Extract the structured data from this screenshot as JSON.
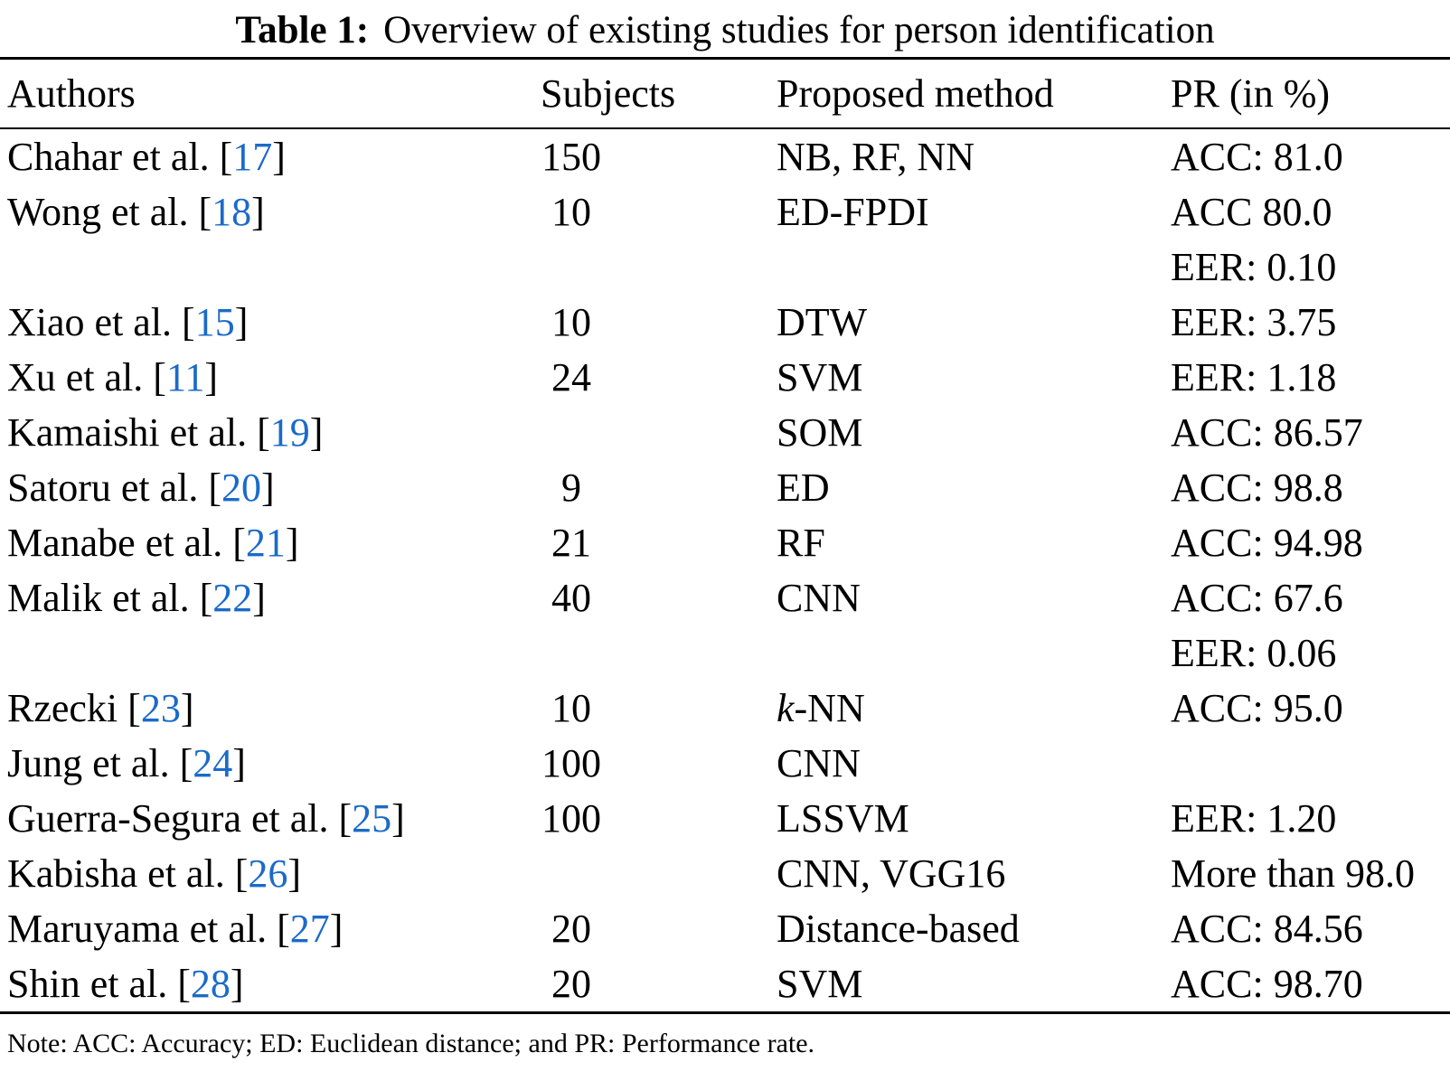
{
  "title": {
    "label": "Table 1:",
    "text": "Overview of existing studies for person identification"
  },
  "brackets": {
    "open": "[",
    "close": "]"
  },
  "columns": {
    "authors": "Authors",
    "subjects": "Subjects",
    "method": "Proposed method",
    "pr": "PR (in %)"
  },
  "colors": {
    "citation_blue": "#1b6ac9",
    "text": "#000000",
    "rule": "#000000",
    "background": "#ffffff"
  },
  "rows": [
    {
      "author": "Chahar et al. ",
      "cite": "17",
      "subjects": "150",
      "method": "NB, RF, NN",
      "pr": [
        "ACC: 81.0"
      ]
    },
    {
      "author": "Wong et al. ",
      "cite": "18",
      "subjects": "10",
      "method": "ED-FPDI",
      "pr": [
        "ACC 80.0",
        "EER: 0.10"
      ]
    },
    {
      "author": "Xiao et al. ",
      "cite": "15",
      "subjects": "10",
      "method": "DTW",
      "pr": [
        "EER: 3.75"
      ]
    },
    {
      "author": "Xu et al. ",
      "cite": "11",
      "subjects": "24",
      "method": "SVM",
      "pr": [
        "EER: 1.18"
      ]
    },
    {
      "author": "Kamaishi et al. ",
      "cite": "19",
      "subjects": "",
      "method": "SOM",
      "pr": [
        "ACC: 86.57"
      ]
    },
    {
      "author": "Satoru et al. ",
      "cite": "20",
      "subjects": "9",
      "method": "ED",
      "pr": [
        "ACC: 98.8"
      ]
    },
    {
      "author": "Manabe et al. ",
      "cite": "21",
      "subjects": "21",
      "method": "RF",
      "pr": [
        "ACC: 94.98"
      ]
    },
    {
      "author": "Malik et al. ",
      "cite": "22",
      "subjects": "40",
      "method": "CNN",
      "pr": [
        "ACC: 67.6",
        "EER: 0.06"
      ]
    },
    {
      "author": "Rzecki ",
      "cite": "23",
      "subjects": "10",
      "method_italic": "k",
      "method": "-NN",
      "pr": [
        "ACC: 95.0"
      ]
    },
    {
      "author": "Jung et al. ",
      "cite": "24",
      "subjects": "100",
      "method": "CNN",
      "pr": []
    },
    {
      "author": "Guerra-Segura et al. ",
      "cite": "25",
      "subjects": "100",
      "method": "LSSVM",
      "pr": [
        "EER: 1.20"
      ]
    },
    {
      "author": "Kabisha et al. ",
      "cite": "26",
      "subjects": "",
      "method": "CNN, VGG16",
      "pr": [
        "More than 98.0"
      ]
    },
    {
      "author": "Maruyama et al. ",
      "cite": "27",
      "subjects": "20",
      "method": "Distance-based",
      "pr": [
        "ACC: 84.56"
      ]
    },
    {
      "author": "Shin et al. ",
      "cite": "28",
      "subjects": "20",
      "method": "SVM",
      "pr": [
        "ACC: 98.70"
      ]
    }
  ],
  "note": "Note: ACC: Accuracy; ED: Euclidean distance; and PR: Performance rate."
}
